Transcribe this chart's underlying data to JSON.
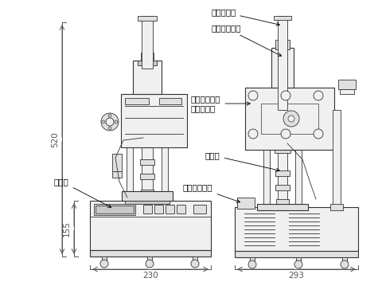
{
  "bg_color": "#ffffff",
  "line_color": "#333333",
  "dim_color": "#444444",
  "annotations": {
    "air_damper": "エアダンパ",
    "handle": "上下ハンドル",
    "flexible_joint": "フレキシブル\nジョイント",
    "sensor": "センサ",
    "operation_switch": "操作スイッチ",
    "display": "表示部",
    "dim_520": "520",
    "dim_155": "155",
    "dim_230": "230",
    "dim_293": "293"
  },
  "figsize": [
    4.8,
    3.54
  ],
  "dpi": 100
}
